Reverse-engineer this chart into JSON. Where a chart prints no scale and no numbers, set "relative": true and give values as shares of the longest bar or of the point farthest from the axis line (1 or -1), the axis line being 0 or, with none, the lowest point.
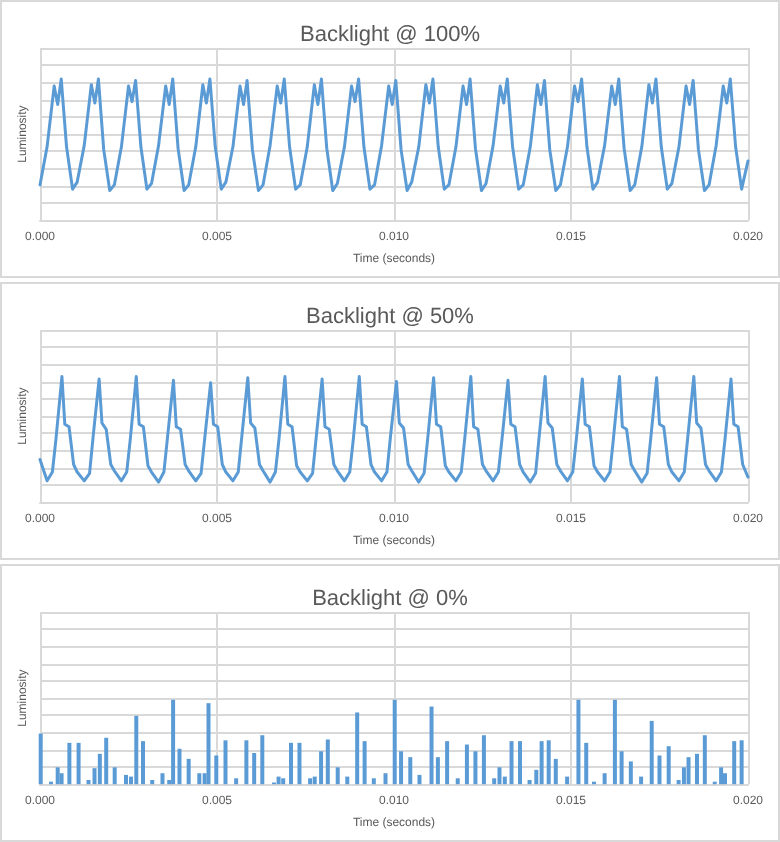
{
  "chart_data": [
    {
      "type": "line",
      "title": "Backlight @ 100%",
      "xlabel": "Time (seconds)",
      "ylabel": "Luminosity",
      "relative": true,
      "grid": true,
      "marker": "none",
      "line_style": "solid",
      "xlim": [
        0,
        0.02
      ],
      "xticks": [
        {
          "value": 0,
          "label": "0.000"
        },
        {
          "value": 0.005,
          "label": "0.005"
        },
        {
          "value": 0.01,
          "label": "0.010"
        },
        {
          "value": 0.015,
          "label": "0.015"
        },
        {
          "value": 0.02,
          "label": "0.020"
        }
      ],
      "series": [
        {
          "color": "#5b9bd5",
          "x": [
            0,
            0.0002,
            0.0004,
            0.0005,
            0.0006,
            0.00075,
            0.00092,
            0.00105,
            0.00125,
            0.00145,
            0.00155,
            0.00165,
            0.0018,
            0.00197,
            0.0021,
            0.0023,
            0.0025,
            0.0026,
            0.0027,
            0.00285,
            0.00302,
            0.00315,
            0.00335,
            0.00355,
            0.00365,
            0.00375,
            0.0039,
            0.00407,
            0.0042,
            0.0044,
            0.0046,
            0.0047,
            0.0048,
            0.00495,
            0.00512,
            0.00525,
            0.00545,
            0.00565,
            0.00575,
            0.00585,
            0.006,
            0.00617,
            0.0063,
            0.0065,
            0.0067,
            0.0068,
            0.0069,
            0.00705,
            0.00722,
            0.00735,
            0.00755,
            0.00775,
            0.00785,
            0.00795,
            0.0081,
            0.00827,
            0.0084,
            0.0086,
            0.0088,
            0.0089,
            0.009,
            0.00915,
            0.00932,
            0.00945,
            0.00965,
            0.00985,
            0.00995,
            0.01005,
            0.0102,
            0.01037,
            0.0105,
            0.0107,
            0.0109,
            0.011,
            0.0111,
            0.01125,
            0.01142,
            0.01155,
            0.01175,
            0.01195,
            0.01205,
            0.01215,
            0.0123,
            0.01247,
            0.0126,
            0.0128,
            0.013,
            0.0131,
            0.0132,
            0.01335,
            0.01352,
            0.01365,
            0.01385,
            0.01405,
            0.01415,
            0.01425,
            0.0144,
            0.01457,
            0.0147,
            0.0149,
            0.0151,
            0.0152,
            0.0153,
            0.01545,
            0.01562,
            0.01575,
            0.01595,
            0.01615,
            0.01625,
            0.01635,
            0.0165,
            0.01667,
            0.0168,
            0.017,
            0.0172,
            0.0173,
            0.0174,
            0.01755,
            0.01772,
            0.01785,
            0.01805,
            0.01825,
            0.01835,
            0.01845,
            0.0186,
            0.01877,
            0.0189,
            0.0191,
            0.0193,
            0.0194,
            0.0195,
            0.01965,
            0.01982,
            0.02
          ],
          "values": [
            0.25,
            0.52,
            0.95,
            0.82,
            1.0,
            0.52,
            0.22,
            0.27,
            0.53,
            0.96,
            0.83,
            1.0,
            0.5,
            0.21,
            0.25,
            0.52,
            0.95,
            0.84,
            0.99,
            0.52,
            0.22,
            0.26,
            0.53,
            0.95,
            0.82,
            1.0,
            0.51,
            0.21,
            0.25,
            0.52,
            0.96,
            0.83,
            1.0,
            0.52,
            0.22,
            0.27,
            0.52,
            0.95,
            0.82,
            0.99,
            0.5,
            0.21,
            0.25,
            0.53,
            0.95,
            0.83,
            1.0,
            0.52,
            0.22,
            0.25,
            0.52,
            0.96,
            0.82,
            1.0,
            0.51,
            0.21,
            0.26,
            0.52,
            0.95,
            0.84,
            1.0,
            0.52,
            0.22,
            0.25,
            0.53,
            0.95,
            0.82,
            0.99,
            0.5,
            0.21,
            0.27,
            0.52,
            0.96,
            0.83,
            1.0,
            0.52,
            0.22,
            0.25,
            0.52,
            0.95,
            0.82,
            1.0,
            0.51,
            0.21,
            0.26,
            0.53,
            0.95,
            0.83,
            1.0,
            0.52,
            0.22,
            0.25,
            0.52,
            0.96,
            0.82,
            0.99,
            0.5,
            0.21,
            0.25,
            0.52,
            0.95,
            0.84,
            1.0,
            0.52,
            0.22,
            0.27,
            0.53,
            0.95,
            0.82,
            1.0,
            0.51,
            0.21,
            0.25,
            0.52,
            0.96,
            0.83,
            1.0,
            0.52,
            0.22,
            0.26,
            0.52,
            0.95,
            0.82,
            0.99,
            0.5,
            0.21,
            0.25,
            0.53,
            0.95,
            0.83,
            1.0,
            0.52,
            0.22,
            0.42
          ]
        }
      ]
    },
    {
      "type": "line",
      "title": "Backlight @ 50%",
      "xlabel": "Time (seconds)",
      "ylabel": "Luminosity",
      "relative": true,
      "grid": true,
      "marker": "none",
      "line_style": "solid",
      "xlim": [
        0,
        0.02
      ],
      "xticks": [
        {
          "value": 0,
          "label": "0.000"
        },
        {
          "value": 0.005,
          "label": "0.005"
        },
        {
          "value": 0.01,
          "label": "0.010"
        },
        {
          "value": 0.015,
          "label": "0.015"
        },
        {
          "value": 0.02,
          "label": "0.020"
        }
      ],
      "series": [
        {
          "color": "#5b9bd5",
          "x": [
            0,
            0.0002,
            0.00035,
            0.00045,
            0.00062,
            0.0007,
            0.00082,
            0.00095,
            0.00105,
            0.00125,
            0.0014,
            0.0015,
            0.00167,
            0.00175,
            0.00187,
            0.002,
            0.0021,
            0.0023,
            0.00245,
            0.00255,
            0.00272,
            0.0028,
            0.00292,
            0.00305,
            0.00315,
            0.00335,
            0.0035,
            0.0036,
            0.00377,
            0.00385,
            0.00397,
            0.0041,
            0.0042,
            0.0044,
            0.00455,
            0.00465,
            0.00482,
            0.0049,
            0.00502,
            0.00515,
            0.00525,
            0.00545,
            0.0056,
            0.0057,
            0.00587,
            0.00595,
            0.00607,
            0.0062,
            0.0063,
            0.0065,
            0.00665,
            0.00675,
            0.00692,
            0.007,
            0.00712,
            0.00725,
            0.00735,
            0.00755,
            0.0077,
            0.0078,
            0.00797,
            0.00805,
            0.00817,
            0.0083,
            0.0084,
            0.0086,
            0.00875,
            0.00885,
            0.00902,
            0.0091,
            0.00922,
            0.00935,
            0.00945,
            0.00965,
            0.0098,
            0.0099,
            0.01007,
            0.01015,
            0.01027,
            0.0104,
            0.0105,
            0.0107,
            0.01085,
            0.01095,
            0.01112,
            0.0112,
            0.01132,
            0.01145,
            0.01155,
            0.01175,
            0.0119,
            0.012,
            0.01217,
            0.01225,
            0.01237,
            0.0125,
            0.0126,
            0.0128,
            0.01295,
            0.01305,
            0.01322,
            0.0133,
            0.01342,
            0.01355,
            0.01365,
            0.01385,
            0.014,
            0.0141,
            0.01427,
            0.01435,
            0.01447,
            0.0146,
            0.0147,
            0.0149,
            0.01505,
            0.01515,
            0.01532,
            0.0154,
            0.01552,
            0.01565,
            0.01575,
            0.01595,
            0.0161,
            0.0162,
            0.01637,
            0.01645,
            0.01657,
            0.0167,
            0.0168,
            0.017,
            0.01715,
            0.01725,
            0.01742,
            0.0175,
            0.01762,
            0.01775,
            0.01785,
            0.01805,
            0.0182,
            0.0183,
            0.01847,
            0.01855,
            0.01867,
            0.0188,
            0.0189,
            0.0191,
            0.01925,
            0.01935,
            0.01952,
            0.0196,
            0.01972,
            0.01985,
            0.02
          ],
          "values": [
            0.34,
            0.17,
            0.24,
            0.5,
            1.0,
            0.62,
            0.6,
            0.3,
            0.24,
            0.17,
            0.23,
            0.52,
            0.98,
            0.63,
            0.58,
            0.3,
            0.25,
            0.17,
            0.24,
            0.5,
            1.0,
            0.62,
            0.6,
            0.29,
            0.24,
            0.16,
            0.24,
            0.51,
            0.97,
            0.6,
            0.58,
            0.3,
            0.25,
            0.17,
            0.23,
            0.5,
            0.95,
            0.62,
            0.6,
            0.3,
            0.24,
            0.17,
            0.24,
            0.52,
            0.99,
            0.63,
            0.59,
            0.3,
            0.25,
            0.16,
            0.24,
            0.5,
            1.0,
            0.62,
            0.6,
            0.29,
            0.24,
            0.17,
            0.23,
            0.51,
            0.98,
            0.6,
            0.58,
            0.3,
            0.25,
            0.17,
            0.24,
            0.5,
            1.0,
            0.62,
            0.6,
            0.3,
            0.24,
            0.17,
            0.24,
            0.52,
            0.96,
            0.63,
            0.59,
            0.3,
            0.25,
            0.16,
            0.23,
            0.5,
            0.99,
            0.62,
            0.6,
            0.29,
            0.24,
            0.17,
            0.24,
            0.51,
            1.0,
            0.6,
            0.58,
            0.3,
            0.25,
            0.17,
            0.24,
            0.5,
            0.97,
            0.62,
            0.6,
            0.3,
            0.24,
            0.16,
            0.23,
            0.52,
            1.0,
            0.63,
            0.59,
            0.3,
            0.25,
            0.17,
            0.24,
            0.5,
            0.98,
            0.62,
            0.6,
            0.29,
            0.24,
            0.17,
            0.24,
            0.51,
            1.0,
            0.6,
            0.58,
            0.3,
            0.25,
            0.16,
            0.23,
            0.5,
            0.99,
            0.62,
            0.6,
            0.3,
            0.24,
            0.17,
            0.24,
            0.52,
            1.0,
            0.63,
            0.59,
            0.3,
            0.25,
            0.17,
            0.24,
            0.5,
            0.98,
            0.62,
            0.6,
            0.3,
            0.2
          ]
        }
      ]
    },
    {
      "type": "bar",
      "title": "Backlight @ 0%",
      "xlabel": "Time (seconds)",
      "ylabel": "Luminosity",
      "relative": true,
      "grid": true,
      "xlim": [
        0,
        0.02
      ],
      "xticks": [
        {
          "value": 0,
          "label": "0.000"
        },
        {
          "value": 0.005,
          "label": "0.005"
        },
        {
          "value": 0.01,
          "label": "0.010"
        },
        {
          "value": 0.015,
          "label": "0.015"
        },
        {
          "value": 0.02,
          "label": "0.020"
        }
      ],
      "series": [
        {
          "color": "#5b9bd5",
          "x": [
            2e-05,
            0.00031,
            0.0005,
            0.00061,
            0.00083,
            0.00109,
            0.00137,
            0.00154,
            0.00169,
            0.00187,
            0.00211,
            0.00243,
            0.00257,
            0.00272,
            0.00291,
            0.00317,
            0.00346,
            0.00365,
            0.00376,
            0.00394,
            0.0042,
            0.0045,
            0.00465,
            0.00476,
            0.00498,
            0.00524,
            0.00554,
            0.00583,
            0.00605,
            0.00628,
            0.00661,
            0.00674,
            0.00687,
            0.00709,
            0.00733,
            0.00763,
            0.00776,
            0.00794,
            0.00813,
            0.00841,
            0.00868,
            0.00896,
            0.00917,
            0.00943,
            0.00976,
            0.01002,
            0.0102,
            0.01046,
            0.01072,
            0.01106,
            0.01124,
            0.0115,
            0.0118,
            0.01206,
            0.0123,
            0.01254,
            0.01283,
            0.01298,
            0.01313,
            0.01332,
            0.01356,
            0.01383,
            0.01402,
            0.01417,
            0.01437,
            0.01457,
            0.01489,
            0.01521,
            0.01543,
            0.01565,
            0.01595,
            0.01624,
            0.01643,
            0.01669,
            0.01698,
            0.01728,
            0.0175,
            0.01776,
            0.01804,
            0.01819,
            0.01832,
            0.01856,
            0.01878,
            0.01906,
            0.01924,
            0.01935,
            0.01961,
            0.01982
          ],
          "values": [
            0.6,
            0.03,
            0.2,
            0.13,
            0.49,
            0.49,
            0.05,
            0.19,
            0.36,
            0.55,
            0.2,
            0.11,
            0.09,
            0.81,
            0.51,
            0.05,
            0.13,
            0.05,
            1.0,
            0.42,
            0.3,
            0.13,
            0.13,
            0.96,
            0.34,
            0.52,
            0.07,
            0.52,
            0.37,
            0.58,
            0.02,
            0.09,
            0.07,
            0.49,
            0.49,
            0.07,
            0.09,
            0.39,
            0.53,
            0.2,
            0.09,
            0.85,
            0.51,
            0.07,
            0.13,
            1.0,
            0.39,
            0.32,
            0.11,
            0.92,
            0.32,
            0.51,
            0.07,
            0.47,
            0.39,
            0.58,
            0.07,
            0.2,
            0.09,
            0.51,
            0.51,
            0.05,
            0.17,
            0.51,
            0.52,
            0.3,
            0.09,
            1.0,
            0.49,
            0.03,
            0.13,
            1.0,
            0.39,
            0.27,
            0.09,
            0.75,
            0.34,
            0.45,
            0.05,
            0.2,
            0.32,
            0.36,
            0.58,
            0.03,
            0.2,
            0.13,
            0.51,
            0.52
          ]
        }
      ]
    }
  ]
}
